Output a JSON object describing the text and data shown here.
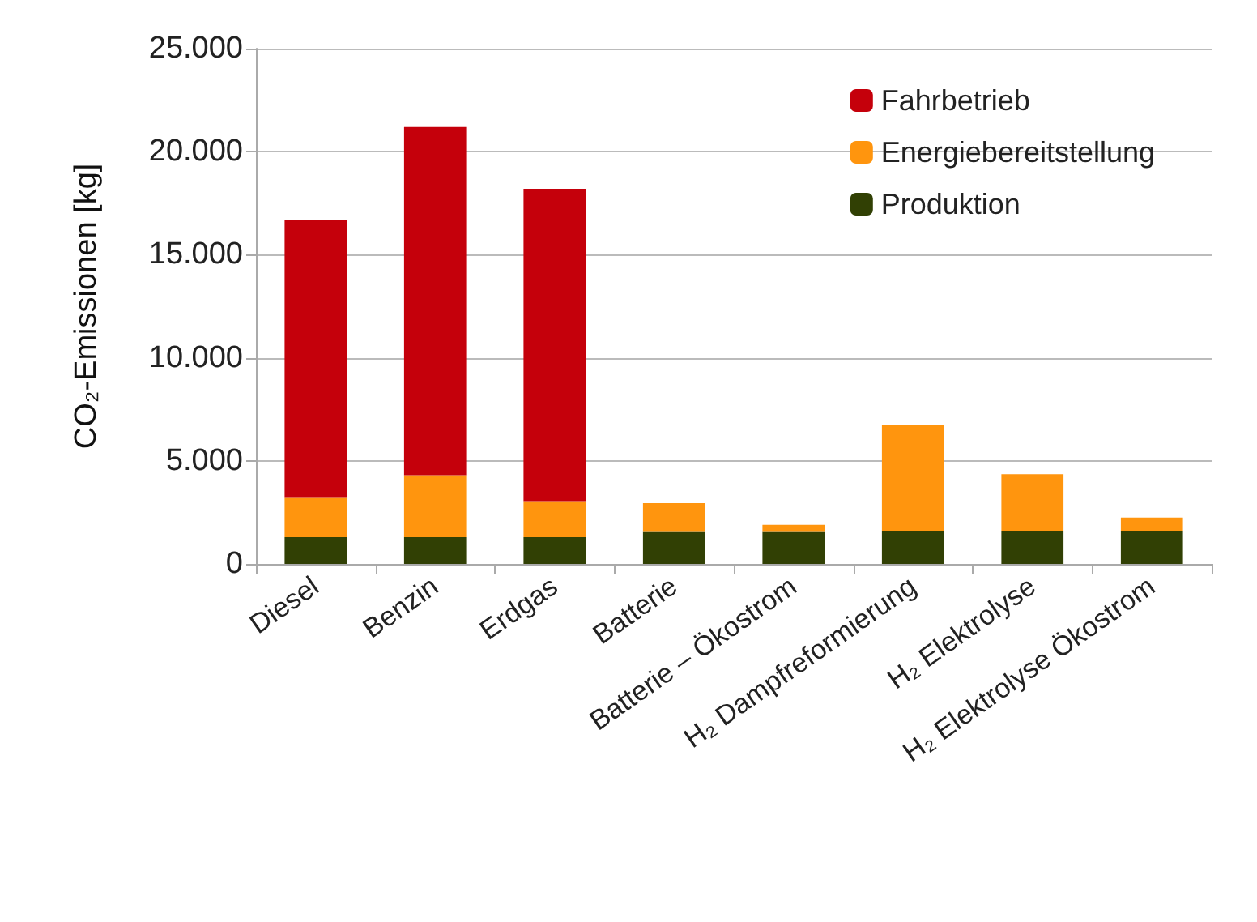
{
  "chart_data": {
    "type": "bar",
    "stacked": true,
    "ylabel": "CO₂-Emissionen [kg]",
    "categories": [
      "Diesel",
      "Benzin",
      "Erdgas",
      "Batterie",
      "Batterie – Ökostrom",
      "H₂ Dampfreformierung",
      "H₂ Elektrolyse",
      "H₂ Elektrolyse Ökostrom"
    ],
    "series": [
      {
        "name": "Produktion",
        "color": "#314004",
        "values": [
          1300,
          1300,
          1300,
          1550,
          1550,
          1600,
          1600,
          1600
        ]
      },
      {
        "name": "Energiebereitstellung",
        "color": "#ff950e",
        "values": [
          1900,
          3000,
          1750,
          1400,
          350,
          5150,
          2750,
          650
        ]
      },
      {
        "name": "Fahrbetrieb",
        "color": "#c5000b",
        "values": [
          13500,
          16900,
          15150,
          null,
          null,
          null,
          null,
          null
        ]
      }
    ],
    "ylim": [
      0,
      25000
    ],
    "yticks": [
      {
        "value": 0,
        "label": "0"
      },
      {
        "value": 5000,
        "label": "5.000"
      },
      {
        "value": 10000,
        "label": "10.000"
      },
      {
        "value": 15000,
        "label": "15.000"
      },
      {
        "value": 20000,
        "label": "20.000"
      },
      {
        "value": 25000,
        "label": "25.000"
      }
    ],
    "grid": "y",
    "legend": "top right"
  }
}
